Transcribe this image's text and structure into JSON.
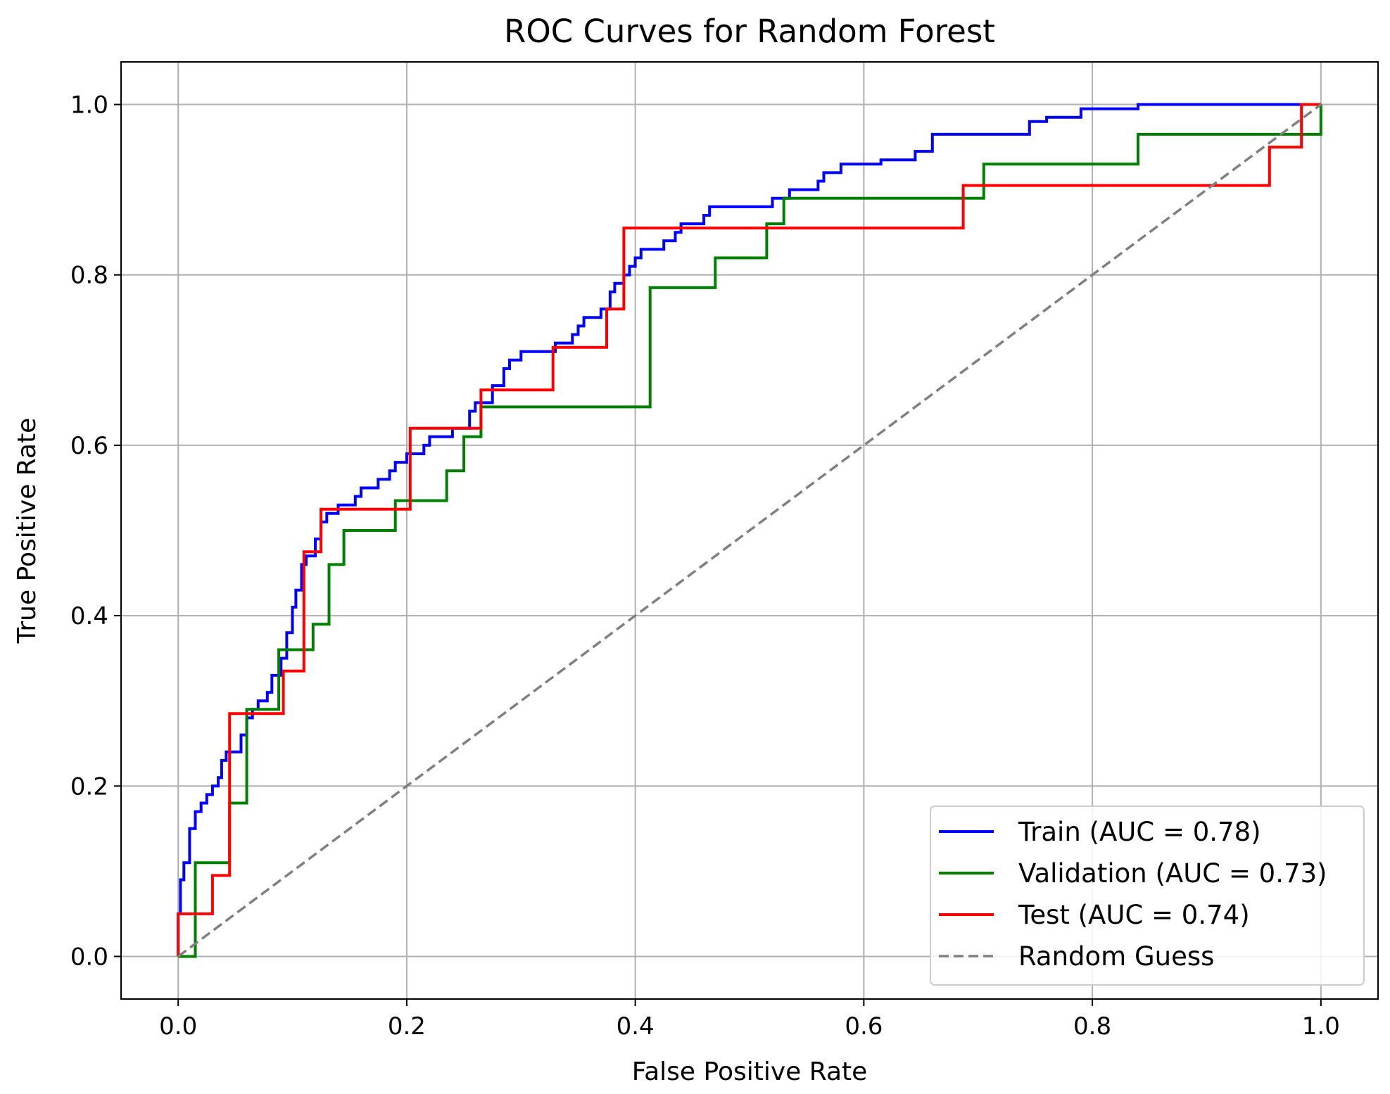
{
  "chart_data": {
    "type": "line",
    "title": "ROC Curves for Random Forest",
    "xlabel": "False Positive Rate",
    "ylabel": "True Positive Rate",
    "xlim": [
      -0.05,
      1.05
    ],
    "ylim": [
      -0.05,
      1.05
    ],
    "xticks": [
      "0.0",
      "0.2",
      "0.4",
      "0.6",
      "0.8",
      "1.0"
    ],
    "yticks": [
      "0.0",
      "0.2",
      "0.4",
      "0.6",
      "0.8",
      "1.0"
    ],
    "grid": true,
    "legend_position": "lower-right",
    "series": [
      {
        "name": "Train (AUC = 0.78)",
        "color": "#0000ff",
        "style": "solid",
        "points": [
          [
            0,
            0
          ],
          [
            0,
            0.05
          ],
          [
            0.002,
            0.05
          ],
          [
            0.002,
            0.09
          ],
          [
            0.005,
            0.09
          ],
          [
            0.005,
            0.11
          ],
          [
            0.01,
            0.11
          ],
          [
            0.01,
            0.15
          ],
          [
            0.015,
            0.15
          ],
          [
            0.015,
            0.17
          ],
          [
            0.02,
            0.17
          ],
          [
            0.02,
            0.18
          ],
          [
            0.025,
            0.18
          ],
          [
            0.025,
            0.19
          ],
          [
            0.03,
            0.19
          ],
          [
            0.03,
            0.2
          ],
          [
            0.035,
            0.2
          ],
          [
            0.035,
            0.21
          ],
          [
            0.038,
            0.21
          ],
          [
            0.038,
            0.23
          ],
          [
            0.042,
            0.23
          ],
          [
            0.042,
            0.24
          ],
          [
            0.055,
            0.24
          ],
          [
            0.055,
            0.26
          ],
          [
            0.06,
            0.26
          ],
          [
            0.06,
            0.28
          ],
          [
            0.065,
            0.28
          ],
          [
            0.065,
            0.29
          ],
          [
            0.07,
            0.29
          ],
          [
            0.07,
            0.3
          ],
          [
            0.078,
            0.3
          ],
          [
            0.078,
            0.31
          ],
          [
            0.082,
            0.31
          ],
          [
            0.082,
            0.33
          ],
          [
            0.09,
            0.33
          ],
          [
            0.09,
            0.35
          ],
          [
            0.095,
            0.35
          ],
          [
            0.095,
            0.38
          ],
          [
            0.1,
            0.38
          ],
          [
            0.1,
            0.41
          ],
          [
            0.103,
            0.41
          ],
          [
            0.103,
            0.43
          ],
          [
            0.108,
            0.43
          ],
          [
            0.108,
            0.46
          ],
          [
            0.112,
            0.46
          ],
          [
            0.112,
            0.47
          ],
          [
            0.12,
            0.47
          ],
          [
            0.12,
            0.49
          ],
          [
            0.125,
            0.49
          ],
          [
            0.125,
            0.51
          ],
          [
            0.13,
            0.51
          ],
          [
            0.13,
            0.52
          ],
          [
            0.14,
            0.52
          ],
          [
            0.14,
            0.53
          ],
          [
            0.155,
            0.53
          ],
          [
            0.155,
            0.54
          ],
          [
            0.16,
            0.54
          ],
          [
            0.16,
            0.55
          ],
          [
            0.175,
            0.55
          ],
          [
            0.175,
            0.56
          ],
          [
            0.185,
            0.56
          ],
          [
            0.185,
            0.57
          ],
          [
            0.19,
            0.57
          ],
          [
            0.19,
            0.58
          ],
          [
            0.2,
            0.58
          ],
          [
            0.2,
            0.59
          ],
          [
            0.215,
            0.59
          ],
          [
            0.215,
            0.6
          ],
          [
            0.22,
            0.6
          ],
          [
            0.22,
            0.61
          ],
          [
            0.24,
            0.61
          ],
          [
            0.24,
            0.62
          ],
          [
            0.255,
            0.62
          ],
          [
            0.255,
            0.64
          ],
          [
            0.26,
            0.64
          ],
          [
            0.26,
            0.65
          ],
          [
            0.275,
            0.65
          ],
          [
            0.275,
            0.67
          ],
          [
            0.285,
            0.67
          ],
          [
            0.285,
            0.69
          ],
          [
            0.29,
            0.69
          ],
          [
            0.29,
            0.7
          ],
          [
            0.3,
            0.7
          ],
          [
            0.3,
            0.71
          ],
          [
            0.33,
            0.71
          ],
          [
            0.33,
            0.72
          ],
          [
            0.345,
            0.72
          ],
          [
            0.345,
            0.73
          ],
          [
            0.35,
            0.73
          ],
          [
            0.35,
            0.74
          ],
          [
            0.355,
            0.74
          ],
          [
            0.355,
            0.75
          ],
          [
            0.37,
            0.75
          ],
          [
            0.37,
            0.76
          ],
          [
            0.378,
            0.76
          ],
          [
            0.378,
            0.78
          ],
          [
            0.382,
            0.78
          ],
          [
            0.382,
            0.79
          ],
          [
            0.39,
            0.79
          ],
          [
            0.39,
            0.8
          ],
          [
            0.395,
            0.8
          ],
          [
            0.395,
            0.81
          ],
          [
            0.4,
            0.81
          ],
          [
            0.4,
            0.82
          ],
          [
            0.405,
            0.82
          ],
          [
            0.405,
            0.83
          ],
          [
            0.425,
            0.83
          ],
          [
            0.425,
            0.84
          ],
          [
            0.435,
            0.84
          ],
          [
            0.435,
            0.85
          ],
          [
            0.44,
            0.85
          ],
          [
            0.44,
            0.86
          ],
          [
            0.46,
            0.86
          ],
          [
            0.46,
            0.87
          ],
          [
            0.465,
            0.87
          ],
          [
            0.465,
            0.88
          ],
          [
            0.52,
            0.88
          ],
          [
            0.52,
            0.89
          ],
          [
            0.535,
            0.89
          ],
          [
            0.535,
            0.9
          ],
          [
            0.56,
            0.9
          ],
          [
            0.56,
            0.91
          ],
          [
            0.565,
            0.91
          ],
          [
            0.565,
            0.92
          ],
          [
            0.58,
            0.92
          ],
          [
            0.58,
            0.93
          ],
          [
            0.615,
            0.93
          ],
          [
            0.615,
            0.935
          ],
          [
            0.645,
            0.935
          ],
          [
            0.645,
            0.945
          ],
          [
            0.66,
            0.945
          ],
          [
            0.66,
            0.965
          ],
          [
            0.745,
            0.965
          ],
          [
            0.745,
            0.98
          ],
          [
            0.76,
            0.98
          ],
          [
            0.76,
            0.985
          ],
          [
            0.79,
            0.985
          ],
          [
            0.79,
            0.995
          ],
          [
            0.84,
            0.995
          ],
          [
            0.84,
            1.0
          ],
          [
            1.0,
            1.0
          ]
        ]
      },
      {
        "name": "Validation (AUC = 0.73)",
        "color": "#008000",
        "style": "solid",
        "points": [
          [
            0,
            0
          ],
          [
            0.015,
            0
          ],
          [
            0.015,
            0.11
          ],
          [
            0.045,
            0.11
          ],
          [
            0.045,
            0.18
          ],
          [
            0.06,
            0.18
          ],
          [
            0.06,
            0.29
          ],
          [
            0.088,
            0.29
          ],
          [
            0.088,
            0.36
          ],
          [
            0.118,
            0.36
          ],
          [
            0.118,
            0.39
          ],
          [
            0.132,
            0.39
          ],
          [
            0.132,
            0.46
          ],
          [
            0.145,
            0.46
          ],
          [
            0.145,
            0.5
          ],
          [
            0.19,
            0.5
          ],
          [
            0.19,
            0.535
          ],
          [
            0.235,
            0.535
          ],
          [
            0.235,
            0.57
          ],
          [
            0.25,
            0.57
          ],
          [
            0.25,
            0.61
          ],
          [
            0.265,
            0.61
          ],
          [
            0.265,
            0.645
          ],
          [
            0.413,
            0.645
          ],
          [
            0.413,
            0.785
          ],
          [
            0.47,
            0.785
          ],
          [
            0.47,
            0.82
          ],
          [
            0.515,
            0.82
          ],
          [
            0.515,
            0.86
          ],
          [
            0.53,
            0.86
          ],
          [
            0.53,
            0.89
          ],
          [
            0.705,
            0.89
          ],
          [
            0.705,
            0.93
          ],
          [
            0.84,
            0.93
          ],
          [
            0.84,
            0.965
          ],
          [
            1.0,
            0.965
          ],
          [
            1.0,
            1.0
          ]
        ]
      },
      {
        "name": "Test (AUC = 0.74)",
        "color": "#ff0000",
        "style": "solid",
        "points": [
          [
            0,
            0
          ],
          [
            0,
            0.05
          ],
          [
            0.03,
            0.05
          ],
          [
            0.03,
            0.095
          ],
          [
            0.045,
            0.095
          ],
          [
            0.045,
            0.285
          ],
          [
            0.092,
            0.285
          ],
          [
            0.092,
            0.335
          ],
          [
            0.11,
            0.335
          ],
          [
            0.11,
            0.475
          ],
          [
            0.125,
            0.475
          ],
          [
            0.125,
            0.525
          ],
          [
            0.203,
            0.525
          ],
          [
            0.203,
            0.62
          ],
          [
            0.265,
            0.62
          ],
          [
            0.265,
            0.665
          ],
          [
            0.328,
            0.665
          ],
          [
            0.328,
            0.715
          ],
          [
            0.375,
            0.715
          ],
          [
            0.375,
            0.76
          ],
          [
            0.39,
            0.76
          ],
          [
            0.39,
            0.855
          ],
          [
            0.687,
            0.855
          ],
          [
            0.687,
            0.905
          ],
          [
            0.955,
            0.905
          ],
          [
            0.955,
            0.95
          ],
          [
            0.983,
            0.95
          ],
          [
            0.983,
            1.0
          ],
          [
            1.0,
            1.0
          ]
        ]
      },
      {
        "name": "Random Guess",
        "color": "#808080",
        "style": "dashed",
        "points": [
          [
            0,
            0
          ],
          [
            1,
            1
          ]
        ]
      }
    ]
  }
}
